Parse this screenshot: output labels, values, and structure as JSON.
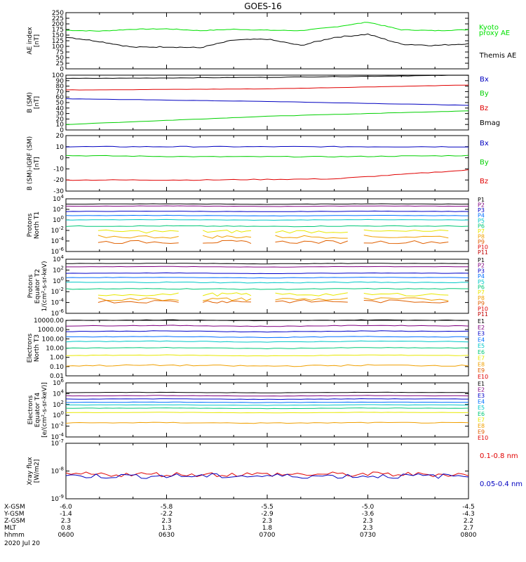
{
  "title": "GOES-16",
  "footer": {
    "rows": [
      {
        "label": "X-GSM",
        "values": [
          "-6.0",
          "-5.8",
          "-5.5",
          "-5.0",
          "-4.5"
        ]
      },
      {
        "label": "Y-GSM",
        "values": [
          "-1.4",
          "-2.2",
          "-2.9",
          "-3.6",
          "-4.3"
        ]
      },
      {
        "label": "Z-GSM",
        "values": [
          "2.3",
          "2.3",
          "2.3",
          "2.3",
          "2.2"
        ]
      },
      {
        "label": "MLT",
        "values": [
          "0.8",
          "1.3",
          "1.8",
          "2.3",
          "2.7"
        ]
      },
      {
        "label": "hhmm",
        "values": [
          "0600",
          "0630",
          "0700",
          "0730",
          "0800"
        ]
      }
    ],
    "date": "2020 Jul 20"
  },
  "colors": {
    "black": "#000000",
    "blue": "#0000c0",
    "green": "#00d000",
    "red": "#e00000",
    "kyoto": "#00e000",
    "p_channels": [
      "#000000",
      "#800080",
      "#0000c8",
      "#0070ff",
      "#00c8c8",
      "#00c878",
      "#e8e800",
      "#f0a000",
      "#e06000",
      "#e00000",
      "#c00000"
    ],
    "e_channels": [
      "#000000",
      "#800080",
      "#0000c8",
      "#0070ff",
      "#00c8c8",
      "#00c878",
      "#e8e800",
      "#f0a000",
      "#e06000",
      "#e00000"
    ]
  },
  "chart_data": [
    {
      "type": "line",
      "id": "ae",
      "ylabel": "AE index [nT]",
      "ylim": [
        0,
        250
      ],
      "yticks": [
        "0",
        "25",
        "50",
        "75",
        "100",
        "125",
        "150",
        "175",
        "200",
        "225",
        "250"
      ],
      "x": [
        "0600",
        "0610",
        "0620",
        "0630",
        "0640",
        "0650",
        "0700",
        "0710",
        "0720",
        "0730",
        "0740",
        "0750",
        "0800"
      ],
      "series": [
        {
          "name": "Kyoto proxy AE",
          "values": [
            172,
            168,
            176,
            178,
            170,
            176,
            172,
            170,
            186,
            208,
            174,
            170,
            174
          ]
        },
        {
          "name": "Themis AE",
          "values": [
            142,
            122,
            96,
            98,
            94,
            128,
            132,
            104,
            140,
            154,
            110,
            104,
            112
          ]
        }
      ]
    },
    {
      "type": "line",
      "id": "bsm",
      "ylabel": "B (SM) [nT]",
      "ylim": [
        0,
        100
      ],
      "yticks": [
        "0",
        "10",
        "20",
        "30",
        "40",
        "50",
        "60",
        "70",
        "80",
        "90",
        "100"
      ],
      "x": [
        "0600",
        "0700",
        "0800"
      ],
      "series": [
        {
          "name": "Bx",
          "values": [
            57,
            52,
            45
          ]
        },
        {
          "name": "By",
          "values": [
            10,
            25,
            35
          ]
        },
        {
          "name": "Bz",
          "values": [
            73,
            75,
            82
          ]
        },
        {
          "name": "Bmag",
          "values": [
            94,
            96,
            100
          ]
        }
      ]
    },
    {
      "type": "line",
      "id": "bigrf",
      "ylabel": "B (SM)-IGRF (SM) [nT]",
      "ylim": [
        -30,
        20
      ],
      "yticks": [
        "-30",
        "-20",
        "-10",
        "0",
        "10",
        "20"
      ],
      "x": [
        "0600",
        "0700",
        "0730",
        "0800"
      ],
      "series": [
        {
          "name": "Bx",
          "values": [
            10,
            10,
            10,
            10
          ]
        },
        {
          "name": "By",
          "values": [
            2,
            1,
            1,
            2
          ]
        },
        {
          "name": "Bz",
          "values": [
            -20,
            -20,
            -19,
            -11
          ]
        }
      ]
    },
    {
      "type": "line",
      "id": "pnorth",
      "log": true,
      "ylabel": "Protons North T1",
      "ylim": [
        -6,
        4
      ],
      "yticks": [
        "10^-6",
        "10^-4",
        "10^-2",
        "10^0",
        "10^2",
        "10^4"
      ],
      "channels": [
        "P1",
        "P2",
        "P3",
        "P4",
        "P5",
        "P6",
        "P7",
        "P8",
        "P9",
        "P10",
        "P11"
      ],
      "log_levels": [
        3.0,
        2.6,
        1.6,
        0.8,
        0.0,
        -1.2,
        -2.2,
        -3.2,
        -4.2,
        null,
        null
      ]
    },
    {
      "type": "line",
      "id": "peq",
      "log": true,
      "ylabel": "Protons Equator T2 1/(cm²-s-sr-keV)",
      "ylim": [
        -6,
        4
      ],
      "yticks": [
        "10^-6",
        "10^-4",
        "10^-2",
        "10^0",
        "10^2",
        "10^4"
      ],
      "channels": [
        "P1",
        "P2",
        "P3",
        "P4",
        "P5",
        "P6",
        "P7",
        "P8",
        "P9",
        "P10",
        "P11"
      ],
      "log_levels": [
        3.2,
        2.6,
        1.4,
        0.6,
        -0.3,
        -1.5,
        -2.5,
        -3.4,
        -3.8,
        null,
        null
      ]
    },
    {
      "type": "line",
      "id": "enorth",
      "log": true,
      "ylabel": "Electrons North T3",
      "ylim": [
        -2,
        4
      ],
      "yticks": [
        "0.01",
        "0.10",
        "1.00",
        "10.00",
        "100.00",
        "1000.00",
        "10000.00"
      ],
      "channels": [
        "E1",
        "E2",
        "E3",
        "E4",
        "E5",
        "E6",
        "E7",
        "E8",
        "E9",
        "E10"
      ],
      "log_levels": [
        4.0,
        3.4,
        2.8,
        2.2,
        1.7,
        1.0,
        0.2,
        -0.9,
        null,
        null
      ]
    },
    {
      "type": "line",
      "id": "eeq",
      "log": true,
      "ylabel": "Electrons Equator T4 [e/(cm²-s-sr-keV)]",
      "ylim": [
        -4,
        6
      ],
      "yticks": [
        "10^-4",
        "10^-2",
        "10^0",
        "10^2",
        "10^4",
        "10^6"
      ],
      "channels": [
        "E1",
        "E2",
        "E3",
        "E4",
        "E5",
        "E6",
        "E7",
        "E8",
        "E9",
        "E10"
      ],
      "log_levels": [
        4.2,
        3.6,
        3.0,
        2.4,
        1.9,
        1.3,
        0.5,
        -1.4,
        null,
        null
      ]
    },
    {
      "type": "line",
      "id": "xray",
      "log": true,
      "ylabel": "Xray flux [W/m2]",
      "ylim": [
        -9,
        -7
      ],
      "yticks": [
        "10^-9",
        "10^-8",
        "10^-7"
      ],
      "x_count": 80,
      "series": [
        {
          "name": "0.1-0.8 nm",
          "level": -8.12
        },
        {
          "name": "0.05-0.4 nm",
          "level": -8.18
        }
      ]
    }
  ]
}
